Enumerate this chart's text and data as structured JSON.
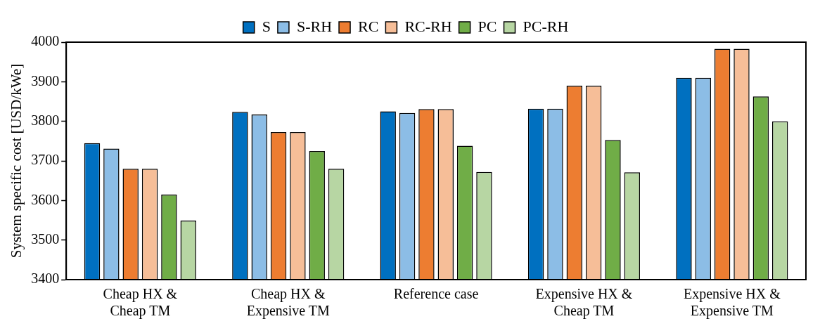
{
  "chart_data": {
    "type": "bar",
    "ylabel": "System specific cost [USD/kWe]",
    "categories": [
      "Cheap HX & Cheap TM",
      "Cheap HX & Expensive TM",
      "Reference case",
      "Expensive HX & Cheap TM",
      "Expensive HX & Expensive TM"
    ],
    "series": [
      {
        "name": "S",
        "color": "#0070c0",
        "values": [
          3745,
          3824,
          3825,
          3832,
          3910
        ]
      },
      {
        "name": "S-RH",
        "color": "#8cbde6",
        "values": [
          3731,
          3817,
          3821,
          3832,
          3910
        ]
      },
      {
        "name": "RC",
        "color": "#ed7d31",
        "values": [
          3680,
          3773,
          3831,
          3890,
          3983
        ]
      },
      {
        "name": "RC-RH",
        "color": "#f6be98",
        "values": [
          3680,
          3773,
          3831,
          3890,
          3983
        ]
      },
      {
        "name": "PC",
        "color": "#70ad47",
        "values": [
          3615,
          3725,
          3738,
          3753,
          3863
        ]
      },
      {
        "name": "PC-RH",
        "color": "#b7d6a3",
        "values": [
          3549,
          3680,
          3672,
          3671,
          3800
        ]
      }
    ],
    "ylim": [
      3400,
      4000
    ],
    "yticks": [
      3400,
      3500,
      3600,
      3700,
      3800,
      3900,
      4000
    ],
    "grid": false,
    "legend": "top"
  }
}
